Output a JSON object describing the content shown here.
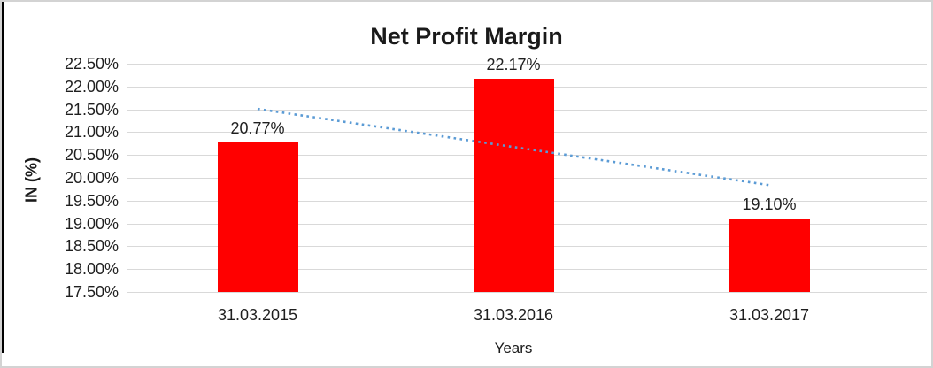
{
  "chart": {
    "title": "Net Profit Margin",
    "y_axis_title": "IN (%)",
    "x_axis_title": "Years"
  },
  "chart_data": {
    "type": "bar",
    "title": "Net Profit Margin",
    "xlabel": "Years",
    "ylabel": "IN (%)",
    "categories": [
      "31.03.2015",
      "31.03.2016",
      "31.03.2017"
    ],
    "values": [
      20.77,
      22.17,
      19.1
    ],
    "value_labels": [
      "20.77%",
      "22.17%",
      "19.10%"
    ],
    "ylim": [
      17.5,
      22.5
    ],
    "y_tick_step": 0.5,
    "y_tick_labels": [
      "22.50%",
      "22.00%",
      "21.50%",
      "21.00%",
      "20.50%",
      "20.00%",
      "19.50%",
      "19.00%",
      "18.50%",
      "18.00%",
      "17.50%"
    ],
    "grid": true,
    "legend": "none",
    "bar_color": "#ff0000",
    "gridline_color": "#d9d9d9",
    "frame_border_color": "#d3d3d3",
    "trendline": {
      "type": "linear",
      "style": "dotted",
      "color": "#5b9bd5",
      "start_value": 21.51,
      "end_value": 19.84
    }
  }
}
